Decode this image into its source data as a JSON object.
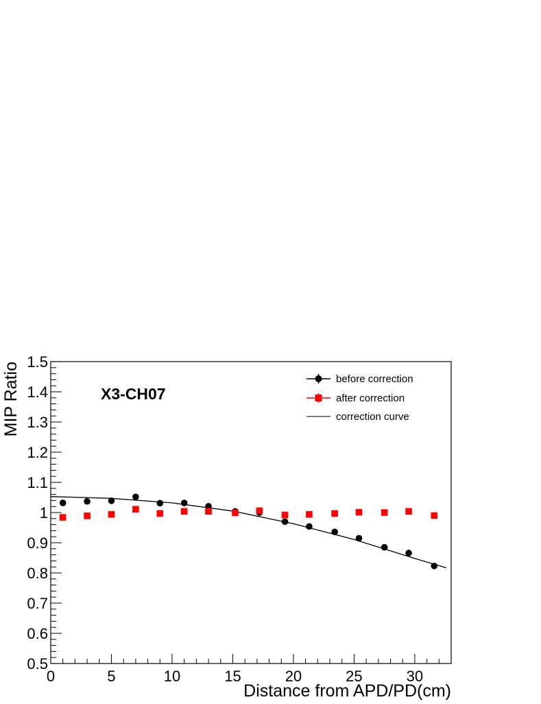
{
  "chart_data": {
    "type": "scatter",
    "title": "",
    "xlabel": "Distance from APD/PD(cm)",
    "ylabel": "MIP Ratio",
    "xlim": [
      0,
      33
    ],
    "ylim": [
      0.5,
      1.5
    ],
    "x_ticks": [
      0,
      5,
      10,
      15,
      20,
      25,
      30
    ],
    "y_ticks": [
      0.5,
      0.6,
      0.7,
      0.8,
      0.9,
      1,
      1.1,
      1.2,
      1.3,
      1.4,
      1.5
    ],
    "grid": false,
    "legend_position": "top-right",
    "annotation": "X3-CH07",
    "series": [
      {
        "name": "before correction",
        "marker": "circle",
        "color": "#000000",
        "x": [
          1,
          3,
          5,
          7,
          9,
          11,
          13,
          15.2,
          17.2,
          19.3,
          21.3,
          23.4,
          25.4,
          27.5,
          29.5,
          31.6
        ],
        "y": [
          1.032,
          1.037,
          1.039,
          1.052,
          1.031,
          1.032,
          1.021,
          1.004,
          1.0,
          0.97,
          0.954,
          0.936,
          0.915,
          0.885,
          0.866,
          0.823
        ]
      },
      {
        "name": "after correction",
        "marker": "square",
        "color": "#ff0000",
        "x": [
          1,
          3,
          5,
          7,
          9,
          11,
          13,
          15.2,
          17.2,
          19.3,
          21.3,
          23.4,
          25.4,
          27.5,
          29.5,
          31.6
        ],
        "y": [
          0.984,
          0.989,
          0.994,
          1.011,
          0.997,
          1.004,
          1.004,
          0.999,
          1.006,
          0.992,
          0.994,
          0.997,
          1.001,
          1.0,
          1.004,
          0.99
        ]
      }
    ],
    "curve": {
      "name": "correction curve",
      "color": "#000000",
      "x": [
        0,
        5,
        10,
        15,
        20,
        25,
        30,
        32.6
      ],
      "y": [
        1.053,
        1.047,
        1.032,
        1.005,
        0.963,
        0.911,
        0.848,
        0.817
      ]
    }
  }
}
